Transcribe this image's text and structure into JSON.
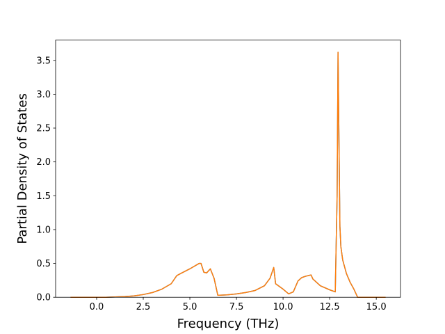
{
  "chart_data": {
    "type": "line",
    "title": "",
    "xlabel": "Frequency (THz)",
    "ylabel": "Partial Density of States",
    "xlim": [
      -2.2,
      16.3
    ],
    "ylim": [
      0.0,
      3.8
    ],
    "xticks": [
      0.0,
      2.5,
      5.0,
      7.5,
      10.0,
      12.5,
      15.0
    ],
    "xtick_labels": [
      "0.0",
      "2.5",
      "5.0",
      "7.5",
      "10.0",
      "12.5",
      "15.0"
    ],
    "yticks": [
      0.0,
      0.5,
      1.0,
      1.5,
      2.0,
      2.5,
      3.0,
      3.5
    ],
    "ytick_labels": [
      "0.0",
      "0.5",
      "1.0",
      "1.5",
      "2.0",
      "2.5",
      "3.0",
      "3.5"
    ],
    "grid": false,
    "legend": "none",
    "series": [
      {
        "color": "#1f77b4",
        "x": [
          -1.4,
          -0.5,
          0.0,
          0.5,
          1.0,
          1.5,
          2.0,
          2.5,
          3.0,
          3.5,
          4.0,
          4.3,
          4.5,
          5.0,
          5.5,
          5.6,
          5.75,
          5.9,
          6.1,
          6.3,
          6.5,
          6.6,
          7.0,
          7.5,
          8.0,
          8.5,
          9.0,
          9.3,
          9.5,
          9.6,
          9.8,
          10.0,
          10.3,
          10.55,
          10.8,
          11.0,
          11.2,
          11.5,
          11.6,
          12.0,
          12.5,
          12.8,
          12.9,
          12.95,
          13.0,
          13.05,
          13.1,
          13.2,
          13.4,
          13.6,
          13.8,
          14.0,
          14.1,
          14.5,
          15.0,
          15.5
        ],
        "y": [
          0.0,
          0.0,
          0.0,
          0.0,
          0.005,
          0.01,
          0.02,
          0.04,
          0.07,
          0.12,
          0.2,
          0.32,
          0.35,
          0.42,
          0.5,
          0.5,
          0.37,
          0.36,
          0.42,
          0.28,
          0.03,
          0.03,
          0.035,
          0.05,
          0.07,
          0.1,
          0.17,
          0.28,
          0.44,
          0.2,
          0.16,
          0.12,
          0.05,
          0.08,
          0.24,
          0.29,
          0.31,
          0.33,
          0.27,
          0.17,
          0.11,
          0.08,
          1.5,
          3.62,
          2.3,
          1.05,
          0.75,
          0.55,
          0.35,
          0.22,
          0.12,
          0.0,
          0.0,
          0.0,
          0.0,
          0.0
        ]
      },
      {
        "color": "#ff7f0e",
        "x": [
          -1.4,
          -0.5,
          0.0,
          0.5,
          1.0,
          1.5,
          2.0,
          2.5,
          3.0,
          3.5,
          4.0,
          4.3,
          4.5,
          5.0,
          5.5,
          5.6,
          5.75,
          5.9,
          6.1,
          6.3,
          6.5,
          6.6,
          7.0,
          7.5,
          8.0,
          8.5,
          9.0,
          9.3,
          9.5,
          9.6,
          9.8,
          10.0,
          10.3,
          10.55,
          10.8,
          11.0,
          11.2,
          11.5,
          11.6,
          12.0,
          12.5,
          12.8,
          12.9,
          12.95,
          13.0,
          13.05,
          13.1,
          13.2,
          13.4,
          13.6,
          13.8,
          14.0,
          14.1,
          14.5,
          15.0,
          15.5
        ],
        "y": [
          0.0,
          0.0,
          0.0,
          0.0,
          0.005,
          0.01,
          0.02,
          0.04,
          0.07,
          0.12,
          0.2,
          0.32,
          0.35,
          0.42,
          0.5,
          0.5,
          0.37,
          0.36,
          0.42,
          0.28,
          0.03,
          0.03,
          0.035,
          0.05,
          0.07,
          0.1,
          0.17,
          0.28,
          0.44,
          0.2,
          0.16,
          0.12,
          0.05,
          0.08,
          0.24,
          0.29,
          0.31,
          0.33,
          0.27,
          0.17,
          0.11,
          0.08,
          1.5,
          3.62,
          2.3,
          1.05,
          0.75,
          0.55,
          0.35,
          0.22,
          0.12,
          0.0,
          0.0,
          0.0,
          0.0,
          0.0
        ]
      }
    ]
  }
}
